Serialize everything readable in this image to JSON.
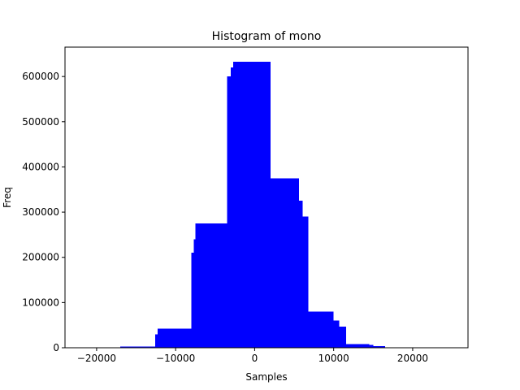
{
  "chart_data": {
    "type": "bar",
    "title": "Histogram of mono",
    "xlabel": "Samples",
    "ylabel": "Freq",
    "xlim": [
      -24000,
      27000
    ],
    "ylim": [
      0,
      665000
    ],
    "xticks": [
      -20000,
      -10000,
      0,
      10000,
      20000
    ],
    "xtick_labels": [
      "−20000",
      "−10000",
      "0",
      "10000",
      "20000"
    ],
    "yticks": [
      0,
      100000,
      200000,
      300000,
      400000,
      500000,
      600000
    ],
    "ytick_labels": [
      "0",
      "100000",
      "200000",
      "300000",
      "400000",
      "500000",
      "600000"
    ],
    "grid": false,
    "color": "#0000ff",
    "bins": [
      {
        "x0": -22000,
        "x1": -17000,
        "value": 500
      },
      {
        "x0": -17000,
        "x1": -12600,
        "value": 2500
      },
      {
        "x0": -12600,
        "x1": -12300,
        "value": 30000
      },
      {
        "x0": -12300,
        "x1": -8000,
        "value": 42000
      },
      {
        "x0": -8000,
        "x1": -7700,
        "value": 210000
      },
      {
        "x0": -7700,
        "x1": -7500,
        "value": 240000
      },
      {
        "x0": -7500,
        "x1": -3500,
        "value": 275000
      },
      {
        "x0": -3500,
        "x1": -3000,
        "value": 600000
      },
      {
        "x0": -3000,
        "x1": -2700,
        "value": 620000
      },
      {
        "x0": -2700,
        "x1": 2000,
        "value": 633000
      },
      {
        "x0": 2000,
        "x1": 5600,
        "value": 375000
      },
      {
        "x0": 5600,
        "x1": 6100,
        "value": 325000
      },
      {
        "x0": 6100,
        "x1": 6800,
        "value": 290000
      },
      {
        "x0": 6800,
        "x1": 10000,
        "value": 80000
      },
      {
        "x0": 10000,
        "x1": 10700,
        "value": 60000
      },
      {
        "x0": 10700,
        "x1": 11600,
        "value": 47000
      },
      {
        "x0": 11600,
        "x1": 14500,
        "value": 8000
      },
      {
        "x0": 14500,
        "x1": 15000,
        "value": 6000
      },
      {
        "x0": 15000,
        "x1": 16500,
        "value": 4000
      },
      {
        "x0": 16500,
        "x1": 26000,
        "value": 200
      }
    ]
  }
}
